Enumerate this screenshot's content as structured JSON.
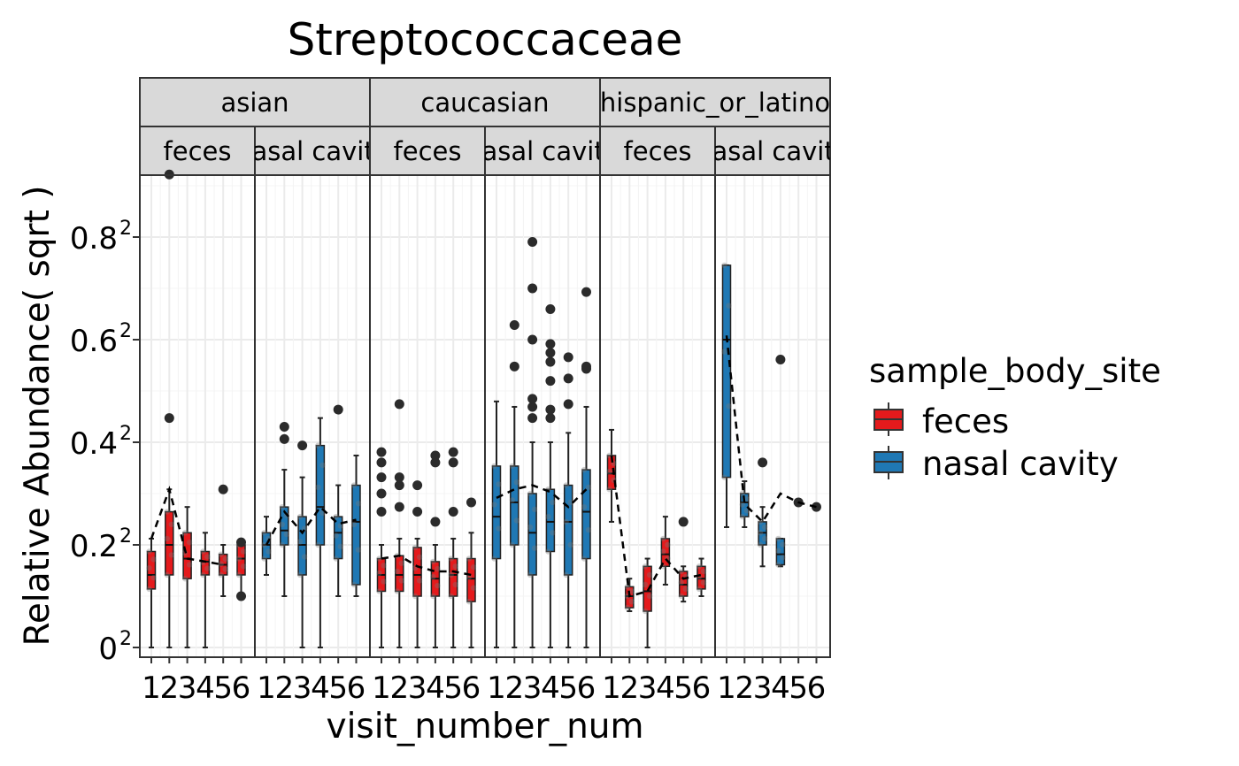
{
  "chart_data": {
    "type": "boxplot",
    "title": "Streptococcaceae",
    "xlabel": "visit_number_num",
    "ylabel": "Relative Abundance( sqrt )",
    "y_scale": "sqrt",
    "y_ticks": [
      {
        "value": 0,
        "label": "0",
        "exp": "2"
      },
      {
        "value": 0.04,
        "label": "0.2",
        "exp": "2"
      },
      {
        "value": 0.16,
        "label": "0.4",
        "exp": "2"
      },
      {
        "value": 0.36,
        "label": "0.6",
        "exp": "2"
      },
      {
        "value": 0.64,
        "label": "0.8",
        "exp": "2"
      }
    ],
    "x_categories": [
      "1",
      "2",
      "3",
      "4",
      "5",
      "6"
    ],
    "grid": true,
    "legend": {
      "title": "sample_body_site",
      "position": "right",
      "entries": [
        {
          "name": "feces",
          "color": "#E41A1C"
        },
        {
          "name": "nasal cavity",
          "color": "#1F78B4"
        }
      ]
    },
    "facet_rows": [
      "asian",
      "caucasian",
      "hispanic_or_latino"
    ],
    "panels": [
      {
        "ethnicity": "asian",
        "site": "feces",
        "strip": "feces",
        "boxes": [
          {
            "visit": 1,
            "q1": 0.013,
            "med": 0.02,
            "q3": 0.035,
            "low": 0.0,
            "high": 0.045,
            "out": []
          },
          {
            "visit": 2,
            "q1": 0.02,
            "med": 0.04,
            "q3": 0.07,
            "low": 0.0,
            "high": 0.095,
            "out": [
              0.2,
              0.85
            ]
          },
          {
            "visit": 3,
            "q1": 0.018,
            "med": 0.03,
            "q3": 0.05,
            "low": 0.0,
            "high": 0.075,
            "out": []
          },
          {
            "visit": 4,
            "q1": 0.02,
            "med": 0.028,
            "q3": 0.035,
            "low": 0.0,
            "high": 0.05,
            "out": []
          },
          {
            "visit": 5,
            "q1": 0.02,
            "med": 0.026,
            "q3": 0.033,
            "low": 0.01,
            "high": 0.04,
            "out": [
              0.095
            ]
          },
          {
            "visit": 6,
            "q1": 0.02,
            "med": 0.03,
            "q3": 0.04,
            "low": 0.01,
            "high": 0.04,
            "out": []
          }
        ],
        "points": [
          [
            6,
            0.01
          ],
          [
            6,
            0.042
          ]
        ],
        "trend": [
          [
            1,
            0.045
          ],
          [
            2,
            0.095
          ],
          [
            3,
            0.03
          ],
          [
            4,
            0.028
          ],
          [
            5,
            0.026
          ]
        ]
      },
      {
        "ethnicity": "asian",
        "site": "nasal cavity",
        "strip": "nasal cavity",
        "boxes": [
          {
            "visit": 1,
            "q1": 0.03,
            "med": 0.04,
            "q3": 0.05,
            "low": 0.02,
            "high": 0.065,
            "out": []
          },
          {
            "visit": 2,
            "q1": 0.04,
            "med": 0.052,
            "q3": 0.075,
            "low": 0.01,
            "high": 0.12,
            "out": [
              0.165,
              0.185
            ]
          },
          {
            "visit": 3,
            "q1": 0.02,
            "med": 0.04,
            "q3": 0.065,
            "low": 0.0,
            "high": 0.11,
            "out": [
              0.155
            ]
          },
          {
            "visit": 4,
            "q1": 0.04,
            "med": 0.075,
            "q3": 0.155,
            "low": 0.0,
            "high": 0.2,
            "out": []
          },
          {
            "visit": 5,
            "q1": 0.03,
            "med": 0.05,
            "q3": 0.065,
            "low": 0.01,
            "high": 0.1,
            "out": [
              0.215
            ]
          },
          {
            "visit": 6,
            "q1": 0.015,
            "med": 0.06,
            "q3": 0.1,
            "low": 0.01,
            "high": 0.14,
            "out": []
          }
        ],
        "points": [],
        "trend": [
          [
            1,
            0.04
          ],
          [
            2,
            0.07
          ],
          [
            3,
            0.05
          ],
          [
            4,
            0.075
          ],
          [
            5,
            0.058
          ],
          [
            6,
            0.062
          ]
        ]
      },
      {
        "ethnicity": "caucasian",
        "site": "feces",
        "strip": "feces",
        "boxes": [
          {
            "visit": 1,
            "q1": 0.012,
            "med": 0.02,
            "q3": 0.03,
            "low": 0.0,
            "high": 0.04,
            "out": [
              0.07,
              0.09,
              0.11,
              0.13,
              0.145
            ]
          },
          {
            "visit": 2,
            "q1": 0.012,
            "med": 0.02,
            "q3": 0.032,
            "low": 0.0,
            "high": 0.045,
            "out": [
              0.075,
              0.1,
              0.11,
              0.225
            ]
          },
          {
            "visit": 3,
            "q1": 0.01,
            "med": 0.02,
            "q3": 0.038,
            "low": 0.0,
            "high": 0.045,
            "out": [
              0.07,
              0.1
            ]
          },
          {
            "visit": 4,
            "q1": 0.01,
            "med": 0.018,
            "q3": 0.028,
            "low": 0.0,
            "high": 0.04,
            "out": [
              0.06,
              0.13,
              0.14
            ]
          },
          {
            "visit": 5,
            "q1": 0.01,
            "med": 0.02,
            "q3": 0.03,
            "low": 0.0,
            "high": 0.045,
            "out": [
              0.07,
              0.13,
              0.145
            ]
          },
          {
            "visit": 6,
            "q1": 0.008,
            "med": 0.018,
            "q3": 0.03,
            "low": 0.0,
            "high": 0.05,
            "out": [
              0.08
            ]
          }
        ],
        "points": [],
        "trend": [
          [
            1,
            0.03
          ],
          [
            2,
            0.032
          ],
          [
            3,
            0.025
          ],
          [
            4,
            0.022
          ],
          [
            5,
            0.022
          ],
          [
            6,
            0.02
          ]
        ]
      },
      {
        "ethnicity": "caucasian",
        "site": "nasal cavity",
        "strip": "nasal cavity",
        "boxes": [
          {
            "visit": 1,
            "q1": 0.03,
            "med": 0.065,
            "q3": 0.125,
            "low": 0.0,
            "high": 0.23,
            "out": []
          },
          {
            "visit": 2,
            "q1": 0.04,
            "med": 0.08,
            "q3": 0.125,
            "low": 0.0,
            "high": 0.22,
            "out": [
              0.3,
              0.395
            ]
          },
          {
            "visit": 3,
            "q1": 0.02,
            "med": 0.05,
            "q3": 0.09,
            "low": 0.0,
            "high": 0.16,
            "out": [
              0.2,
              0.22,
              0.235,
              0.36,
              0.49,
              0.625
            ]
          },
          {
            "visit": 4,
            "q1": 0.035,
            "med": 0.06,
            "q3": 0.095,
            "low": 0.0,
            "high": 0.16,
            "out": [
              0.2,
              0.215,
              0.27,
              0.31,
              0.33,
              0.35,
              0.435
            ]
          },
          {
            "visit": 5,
            "q1": 0.02,
            "med": 0.06,
            "q3": 0.1,
            "low": 0.0,
            "high": 0.175,
            "out": [
              0.225,
              0.275,
              0.32
            ]
          },
          {
            "visit": 6,
            "q1": 0.03,
            "med": 0.07,
            "q3": 0.12,
            "low": 0.0,
            "high": 0.22,
            "out": [
              0.295,
              0.3,
              0.48
            ]
          }
        ],
        "points": [],
        "trend": [
          [
            1,
            0.085
          ],
          [
            2,
            0.095
          ],
          [
            3,
            0.1
          ],
          [
            4,
            0.092
          ],
          [
            5,
            0.075
          ],
          [
            6,
            0.095
          ]
        ]
      },
      {
        "ethnicity": "hispanic_or_latino",
        "site": "feces",
        "strip": "feces",
        "boxes": [
          {
            "visit": 1,
            "q1": 0.095,
            "med": 0.115,
            "q3": 0.14,
            "low": 0.06,
            "high": 0.18,
            "out": []
          },
          {
            "visit": 2,
            "q1": 0.006,
            "med": 0.01,
            "q3": 0.014,
            "low": 0.005,
            "high": 0.018,
            "out": []
          },
          {
            "visit": 3,
            "q1": 0.005,
            "med": 0.012,
            "q3": 0.025,
            "low": 0.0,
            "high": 0.03,
            "out": []
          },
          {
            "visit": 4,
            "q1": 0.025,
            "med": 0.033,
            "q3": 0.045,
            "low": 0.015,
            "high": 0.065,
            "out": []
          },
          {
            "visit": 5,
            "q1": 0.01,
            "med": 0.015,
            "q3": 0.022,
            "low": 0.008,
            "high": 0.025,
            "out": [
              0.06
            ]
          },
          {
            "visit": 6,
            "q1": 0.013,
            "med": 0.018,
            "q3": 0.025,
            "low": 0.01,
            "high": 0.03,
            "out": []
          }
        ],
        "points": [],
        "trend": [
          [
            1,
            0.14
          ],
          [
            2,
            0.01
          ],
          [
            3,
            0.012
          ],
          [
            4,
            0.03
          ],
          [
            5,
            0.018
          ],
          [
            6,
            0.02
          ]
        ]
      },
      {
        "ethnicity": "hispanic_or_latino",
        "site": "nasal cavity",
        "strip": "nasal cavity",
        "boxes": [
          {
            "visit": 1,
            "q1": 0.11,
            "med": 0.36,
            "q3": 0.555,
            "low": 0.055,
            "high": 0.555,
            "out": []
          },
          {
            "visit": 2,
            "q1": 0.065,
            "med": 0.08,
            "q3": 0.09,
            "low": 0.055,
            "high": 0.105,
            "out": []
          },
          {
            "visit": 3,
            "q1": 0.04,
            "med": 0.05,
            "q3": 0.06,
            "low": 0.025,
            "high": 0.075,
            "out": [
              0.13
            ]
          },
          {
            "visit": 4,
            "q1": 0.026,
            "med": 0.033,
            "q3": 0.045,
            "low": 0.025,
            "high": 0.045,
            "out": [
              0.315
            ]
          }
        ],
        "points": [
          [
            5,
            0.08
          ],
          [
            6,
            0.075
          ]
        ],
        "trend": [
          [
            1,
            0.37
          ],
          [
            2,
            0.078
          ],
          [
            3,
            0.06
          ],
          [
            4,
            0.09
          ],
          [
            5,
            0.08
          ],
          [
            6,
            0.075
          ]
        ]
      }
    ]
  }
}
